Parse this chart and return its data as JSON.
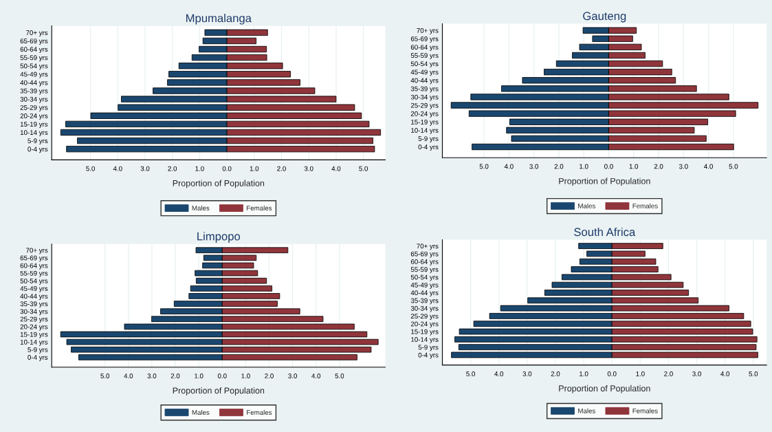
{
  "chart_data": [
    {
      "type": "bar",
      "orientation": "horizontal",
      "stacked": true,
      "title": "Mpumalanga",
      "xlabel": "Proportion of Population",
      "categories": [
        "70+ yrs",
        "65-69 yrs",
        "60-64 yrs",
        "55-59 yrs",
        "50-54 yrs",
        "45-49 yrs",
        "40-44 yrs",
        "35-39 yrs",
        "30-34 yrs",
        "25-29 yrs",
        "20-24 yrs",
        "15-19 yrs",
        "10-14 yrs",
        "5-9 yrs",
        "0-4 yrs"
      ],
      "series": [
        {
          "name": "Males",
          "color": "#1a476f",
          "values": [
            -0.81,
            -0.88,
            -1.02,
            -1.28,
            -1.76,
            -2.13,
            -2.18,
            -2.71,
            -3.87,
            -3.99,
            -4.99,
            -5.91,
            -6.09,
            -5.48,
            -5.88
          ]
        },
        {
          "name": "Females",
          "color": "#90353b",
          "values": [
            1.49,
            1.07,
            1.45,
            1.46,
            2.04,
            2.33,
            2.68,
            3.22,
            4.0,
            4.68,
            4.93,
            5.21,
            5.63,
            5.35,
            5.41
          ]
        }
      ],
      "xlim": [
        -6.42,
        5.8
      ],
      "xticks": [
        {
          "value": -5,
          "label": "5.0"
        },
        {
          "value": -4,
          "label": "4.0"
        },
        {
          "value": -3,
          "label": "3.0"
        },
        {
          "value": -2,
          "label": "2.0"
        },
        {
          "value": -1,
          "label": "1.0"
        },
        {
          "value": 0,
          "label": "0.0"
        },
        {
          "value": 1,
          "label": "1.0"
        },
        {
          "value": 2,
          "label": "2.0"
        },
        {
          "value": 3,
          "label": "3.0"
        },
        {
          "value": 4,
          "label": "4.0"
        },
        {
          "value": 5,
          "label": "5.0"
        }
      ],
      "grid": "x",
      "legend": "bottom"
    },
    {
      "type": "bar",
      "orientation": "horizontal",
      "stacked": true,
      "title": "Gauteng",
      "xlabel": "Proportion of Population",
      "categories": [
        "70+ yrs",
        "65-69 yrs",
        "60-64 yrs",
        "55-59 yrs",
        "50-54 yrs",
        "45-49 yrs",
        "40-44 yrs",
        "35-39 yrs",
        "30-34 yrs",
        "25-29 yrs",
        "20-24 yrs",
        "15-19 yrs",
        "10-14 yrs",
        "5-9 yrs",
        "0-4 yrs"
      ],
      "series": [
        {
          "name": "Males",
          "color": "#1a476f",
          "values": [
            -1.03,
            -0.65,
            -1.17,
            -1.46,
            -2.1,
            -2.59,
            -3.46,
            -4.3,
            -5.53,
            -6.32,
            -5.6,
            -3.97,
            -4.1,
            -3.9,
            -5.48
          ]
        },
        {
          "name": "Females",
          "color": "#90353b",
          "values": [
            1.11,
            0.96,
            1.31,
            1.46,
            2.16,
            2.53,
            2.68,
            3.52,
            4.82,
            5.99,
            5.09,
            3.97,
            3.43,
            3.91,
            5.01
          ]
        }
      ],
      "xlim": [
        -6.67,
        6.33
      ],
      "xticks": [
        {
          "value": -5,
          "label": "5.0"
        },
        {
          "value": -4,
          "label": "4.0"
        },
        {
          "value": -3,
          "label": "3.0"
        },
        {
          "value": -2,
          "label": "2.0"
        },
        {
          "value": -1,
          "label": "1.0"
        },
        {
          "value": 0,
          "label": "0.0"
        },
        {
          "value": 1,
          "label": "1.0"
        },
        {
          "value": 2,
          "label": "2.0"
        },
        {
          "value": 3,
          "label": "3.0"
        },
        {
          "value": 4,
          "label": "4.0"
        },
        {
          "value": 5,
          "label": "5.0"
        }
      ],
      "grid": "x",
      "legend": "bottom"
    },
    {
      "type": "bar",
      "orientation": "horizontal",
      "stacked": true,
      "title": "Limpopo",
      "xlabel": "Proportion of Population",
      "categories": [
        "70+ yrs",
        "65-69 yrs",
        "60-64 yrs",
        "55-59 yrs",
        "50-54 yrs",
        "45-49 yrs",
        "40-44 yrs",
        "35-39 yrs",
        "30-34 yrs",
        "25-29 yrs",
        "20-24 yrs",
        "15-19 yrs",
        "10-14 yrs",
        "5-9 yrs",
        "0-4 yrs"
      ],
      "series": [
        {
          "name": "Males",
          "color": "#1a476f",
          "values": [
            -1.12,
            -0.79,
            -0.84,
            -1.16,
            -1.11,
            -1.35,
            -1.42,
            -2.05,
            -2.63,
            -3.01,
            -4.17,
            -6.89,
            -6.63,
            -6.44,
            -6.12
          ]
        },
        {
          "name": "Females",
          "color": "#90353b",
          "values": [
            2.8,
            1.45,
            1.34,
            1.51,
            1.89,
            2.12,
            2.45,
            2.35,
            3.31,
            4.3,
            5.63,
            6.17,
            6.65,
            6.35,
            5.75
          ]
        }
      ],
      "xlim": [
        -7.27,
        6.95
      ],
      "xticks": [
        {
          "value": -5,
          "label": "5.0"
        },
        {
          "value": -4,
          "label": "4.0"
        },
        {
          "value": -3,
          "label": "3.0"
        },
        {
          "value": -2,
          "label": "2.0"
        },
        {
          "value": -1,
          "label": "1.0"
        },
        {
          "value": 0,
          "label": "0.0"
        },
        {
          "value": 1,
          "label": "1.0"
        },
        {
          "value": 2,
          "label": "2.0"
        },
        {
          "value": 3,
          "label": "3.0"
        },
        {
          "value": 4,
          "label": "4.0"
        },
        {
          "value": 5,
          "label": "5.0"
        }
      ],
      "grid": "x",
      "legend": "bottom"
    },
    {
      "type": "bar",
      "orientation": "horizontal",
      "stacked": true,
      "title": "South Africa",
      "xlabel": "Proportion of Population",
      "categories": [
        "70+ yrs",
        "65-69 yrs",
        "60-64 yrs",
        "55-59 yrs",
        "50-54 yrs",
        "45-49 yrs",
        "40-44 yrs",
        "35-39 yrs",
        "30-34 yrs",
        "25-29 yrs",
        "20-24 yrs",
        "15-19 yrs",
        "10-14 yrs",
        "5-9 yrs",
        "0-4 yrs"
      ],
      "series": [
        {
          "name": "Males",
          "color": "#1a476f",
          "values": [
            -1.18,
            -0.89,
            -1.14,
            -1.44,
            -1.77,
            -2.12,
            -2.38,
            -2.98,
            -3.94,
            -4.33,
            -4.89,
            -5.4,
            -5.56,
            -5.42,
            -5.68
          ]
        },
        {
          "name": "Females",
          "color": "#90353b",
          "values": [
            1.8,
            1.17,
            1.55,
            1.63,
            2.09,
            2.52,
            2.71,
            3.05,
            4.14,
            4.66,
            4.91,
            4.98,
            5.13,
            5.1,
            5.16
          ]
        }
      ],
      "xlim": [
        -6.0,
        5.47
      ],
      "xticks": [
        {
          "value": -5,
          "label": "5.0"
        },
        {
          "value": -4,
          "label": "4.0"
        },
        {
          "value": -3,
          "label": "3.0"
        },
        {
          "value": -2,
          "label": "2.0"
        },
        {
          "value": -1,
          "label": "1.0"
        },
        {
          "value": 0,
          "label": "0.0"
        },
        {
          "value": 1,
          "label": "1.0"
        },
        {
          "value": 2,
          "label": "2.0"
        },
        {
          "value": 3,
          "label": "3.0"
        },
        {
          "value": 4,
          "label": "4.0"
        },
        {
          "value": 5,
          "label": "5.0"
        }
      ],
      "grid": "x",
      "legend": "bottom"
    }
  ]
}
